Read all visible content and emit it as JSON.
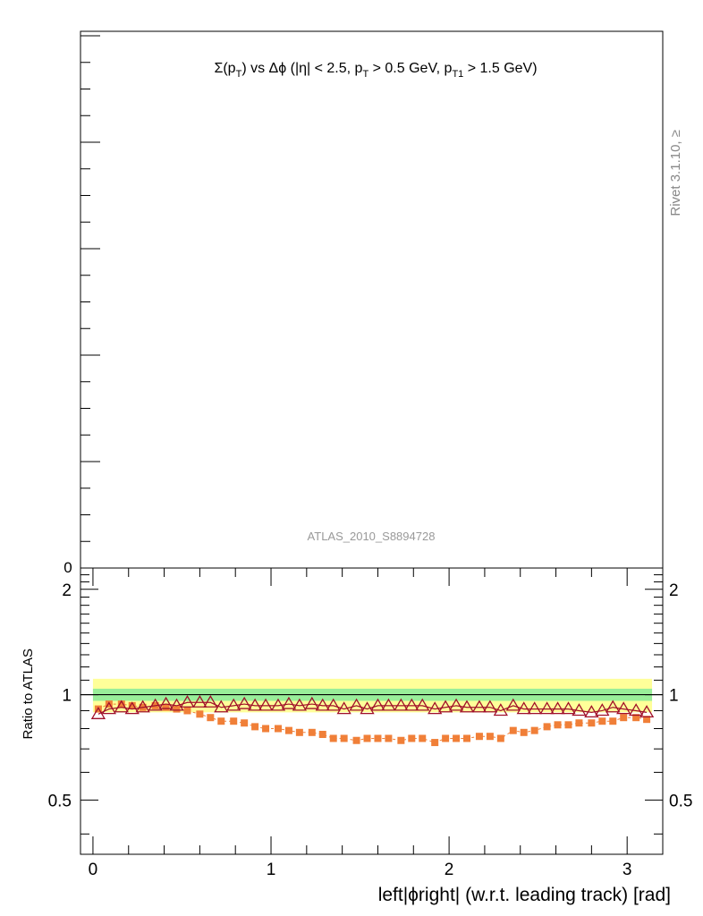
{
  "top_panel": {
    "title_parts": {
      "sigma": "Σ(p",
      "sub_t": "T",
      "mid": ") vs Δϕ (|η| < 2.5, p",
      "sub_t2": "T",
      "mid2": " > 0.5 GeV, p",
      "sub_t1": "T1",
      "end": " > 1.5 GeV)"
    },
    "watermark": "ATLAS_2010_S8894728",
    "side_label": "Rivet 3.1.10, ≥",
    "y_tick_label": "0"
  },
  "colors": {
    "atlas_band_yellow": "#ffff99",
    "atlas_band_green": "#99ee99",
    "series_orange": "#f07f38",
    "series_darkred": "#a0102a"
  },
  "chart_data": {
    "type": "scatter",
    "xlabel": "left|ϕright| (w.r.t. leading track) [rad]",
    "ylabel": "Ratio to ATLAS",
    "xlim": [
      -0.07,
      3.2
    ],
    "ylim": [
      0.35,
      2.3
    ],
    "x_ticks": [
      0,
      1,
      2,
      3
    ],
    "y_ticks": [
      0.5,
      1,
      2
    ],
    "y_tick_labels": [
      "0.5",
      "1",
      "2"
    ],
    "reference_line": 1.0,
    "bands": [
      {
        "name": "yellow",
        "low": 0.89,
        "high": 1.11
      },
      {
        "name": "green",
        "low": 0.96,
        "high": 1.04
      }
    ],
    "series": [
      {
        "marker": "square",
        "x": [
          0.03,
          0.09,
          0.16,
          0.22,
          0.28,
          0.35,
          0.41,
          0.47,
          0.53,
          0.6,
          0.66,
          0.72,
          0.79,
          0.85,
          0.91,
          0.97,
          1.04,
          1.1,
          1.16,
          1.23,
          1.29,
          1.35,
          1.41,
          1.48,
          1.54,
          1.6,
          1.66,
          1.73,
          1.79,
          1.85,
          1.92,
          1.98,
          2.04,
          2.1,
          2.17,
          2.23,
          2.29,
          2.36,
          2.42,
          2.48,
          2.55,
          2.61,
          2.67,
          2.73,
          2.8,
          2.86,
          2.92,
          2.98,
          3.05,
          3.11
        ],
        "values": [
          0.91,
          0.94,
          0.94,
          0.93,
          0.92,
          0.93,
          0.92,
          0.91,
          0.9,
          0.88,
          0.86,
          0.84,
          0.84,
          0.83,
          0.81,
          0.8,
          0.8,
          0.79,
          0.78,
          0.78,
          0.77,
          0.75,
          0.75,
          0.74,
          0.75,
          0.75,
          0.75,
          0.74,
          0.75,
          0.75,
          0.73,
          0.75,
          0.75,
          0.75,
          0.76,
          0.76,
          0.75,
          0.79,
          0.78,
          0.79,
          0.81,
          0.82,
          0.82,
          0.83,
          0.83,
          0.84,
          0.84,
          0.86,
          0.86,
          0.85
        ]
      },
      {
        "marker": "triangle-open",
        "x": [
          0.03,
          0.09,
          0.16,
          0.22,
          0.28,
          0.35,
          0.41,
          0.47,
          0.53,
          0.6,
          0.66,
          0.72,
          0.79,
          0.85,
          0.91,
          0.97,
          1.04,
          1.1,
          1.16,
          1.23,
          1.29,
          1.35,
          1.41,
          1.48,
          1.54,
          1.6,
          1.66,
          1.73,
          1.79,
          1.85,
          1.92,
          1.98,
          2.04,
          2.1,
          2.17,
          2.23,
          2.29,
          2.36,
          2.42,
          2.48,
          2.55,
          2.61,
          2.67,
          2.73,
          2.8,
          2.86,
          2.92,
          2.98,
          3.05,
          3.11
        ],
        "values": [
          0.88,
          0.91,
          0.92,
          0.91,
          0.92,
          0.93,
          0.94,
          0.93,
          0.95,
          0.95,
          0.95,
          0.92,
          0.93,
          0.94,
          0.93,
          0.93,
          0.93,
          0.94,
          0.93,
          0.94,
          0.93,
          0.93,
          0.91,
          0.93,
          0.91,
          0.93,
          0.93,
          0.93,
          0.93,
          0.93,
          0.91,
          0.92,
          0.93,
          0.92,
          0.92,
          0.92,
          0.9,
          0.93,
          0.91,
          0.91,
          0.91,
          0.91,
          0.91,
          0.9,
          0.89,
          0.9,
          0.92,
          0.91,
          0.9,
          0.89
        ]
      }
    ]
  }
}
